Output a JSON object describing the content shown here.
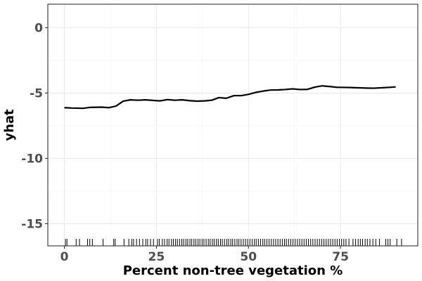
{
  "chart_data": {
    "type": "line",
    "xlabel": "Percent non-tree vegetation %",
    "ylabel": "yhat",
    "xlim": [
      -4.5,
      96
    ],
    "ylim": [
      -16.7,
      1.8
    ],
    "grid": true,
    "x_ticks": [
      0,
      25,
      50,
      75
    ],
    "y_ticks": [
      0,
      -5,
      -10,
      -15
    ],
    "x_tick_labels": [
      "0",
      "25",
      "50",
      "75"
    ],
    "y_tick_labels": [
      "0",
      "-5",
      "-10",
      "-15"
    ],
    "series": [
      {
        "x": [
          0,
          2,
          5,
          7,
          10,
          12,
          14,
          16,
          18,
          20,
          22,
          25,
          26,
          28,
          30,
          32,
          34,
          36,
          38,
          40,
          42,
          44,
          46,
          48,
          50,
          52,
          54,
          56,
          58,
          60,
          62,
          64,
          66,
          68,
          70,
          72,
          74,
          76,
          78,
          80,
          82,
          84,
          86,
          88,
          90
        ],
        "y": [
          -6.12,
          -6.15,
          -6.17,
          -6.1,
          -6.08,
          -6.12,
          -6.0,
          -5.62,
          -5.52,
          -5.55,
          -5.52,
          -5.58,
          -5.6,
          -5.5,
          -5.55,
          -5.52,
          -5.58,
          -5.62,
          -5.6,
          -5.55,
          -5.35,
          -5.4,
          -5.2,
          -5.2,
          -5.1,
          -4.95,
          -4.85,
          -4.77,
          -4.76,
          -4.73,
          -4.68,
          -4.73,
          -4.72,
          -4.55,
          -4.45,
          -4.5,
          -4.56,
          -4.57,
          -4.58,
          -4.6,
          -4.62,
          -4.63,
          -4.6,
          -4.57,
          -4.53
        ],
        "color": "#000000"
      }
    ],
    "rug_x": [
      0.3,
      0.7,
      3.2,
      4.1,
      6.3,
      6.9,
      7.6,
      10.5,
      13.4,
      13.8,
      16.2,
      17.5,
      18.3,
      18.8,
      19.6,
      20.4,
      21.3,
      22.1,
      22.6,
      23.4,
      24.2,
      25.3,
      25.8,
      26.6,
      27.2,
      27.9,
      28.4,
      29.1,
      29.6,
      30.2,
      30.7,
      31.3,
      31.9,
      32.4,
      33.0,
      33.5,
      34.1,
      34.6,
      35.2,
      35.7,
      36.3,
      36.8,
      37.4,
      37.9,
      38.5,
      39.1,
      39.6,
      40.2,
      40.7,
      41.3,
      41.8,
      42.4,
      42.9,
      43.5,
      44.1,
      44.6,
      45.2,
      45.7,
      46.3,
      46.9,
      47.4,
      48.0,
      48.6,
      49.2,
      49.8,
      50.4,
      51.0,
      51.6,
      52.1,
      52.7,
      53.3,
      53.9,
      54.4,
      55.0,
      55.6,
      56.2,
      56.8,
      57.4,
      58.0,
      58.6,
      59.2,
      59.8,
      60.3,
      60.9,
      61.5,
      62.1,
      62.7,
      63.3,
      63.9,
      64.5,
      65.1,
      65.7,
      66.3,
      66.9,
      67.5,
      68.1,
      68.7,
      69.3,
      69.9,
      70.5,
      71.1,
      71.7,
      72.3,
      72.9,
      73.5,
      74.1,
      74.7,
      75.3,
      75.9,
      76.5,
      77.3,
      78.4,
      79.1,
      79.8,
      80.4,
      81.0,
      81.7,
      82.3,
      83.0,
      83.8,
      84.6,
      85.6,
      87.3,
      87.9,
      88.5,
      90.3,
      91.6
    ]
  }
}
